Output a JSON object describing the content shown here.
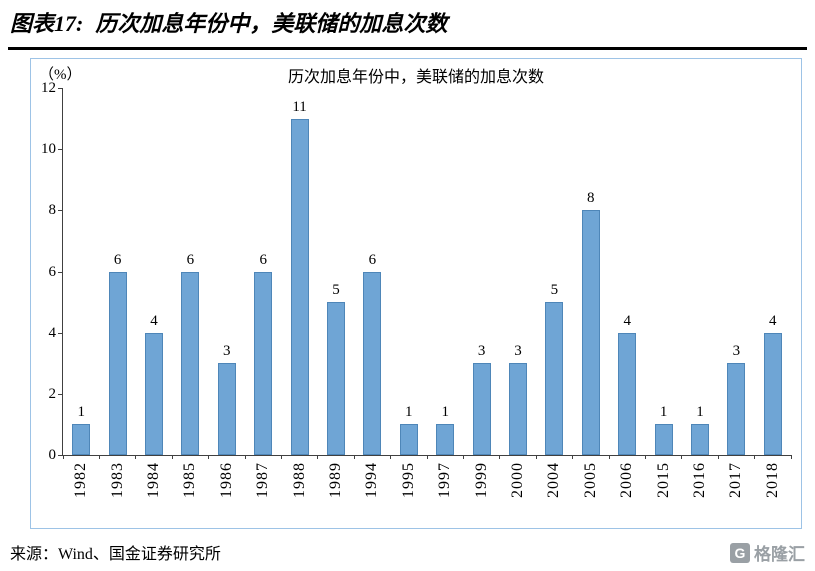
{
  "header": {
    "title_prefix": "图表17:",
    "title_main": "历次加息年份中，美联储的加息次数"
  },
  "chart_data": {
    "type": "bar",
    "title": "历次加息年份中，美联储的加息次数",
    "unit_label": "（%）",
    "categories": [
      "1982",
      "1983",
      "1984",
      "1985",
      "1986",
      "1987",
      "1988",
      "1989",
      "1994",
      "1995",
      "1997",
      "1999",
      "2000",
      "2004",
      "2005",
      "2006",
      "2015",
      "2016",
      "2017",
      "2018"
    ],
    "values": [
      1,
      6,
      4,
      6,
      3,
      6,
      11,
      5,
      6,
      1,
      1,
      3,
      3,
      5,
      8,
      4,
      1,
      1,
      3,
      4
    ],
    "xlabel": "",
    "ylabel": "（%）",
    "ylim": [
      0,
      12
    ],
    "ytick_step": 2,
    "grid": false,
    "legend": "none",
    "bar_color": "#6FA5D5",
    "bar_border_color": "#4E86B8",
    "axis_color": "#404040",
    "frame_color": "#9DC3E6"
  },
  "footer": {
    "source": "来源：Wind、国金证券研究所",
    "logo_monogram": "G",
    "logo_text": "格隆汇"
  }
}
